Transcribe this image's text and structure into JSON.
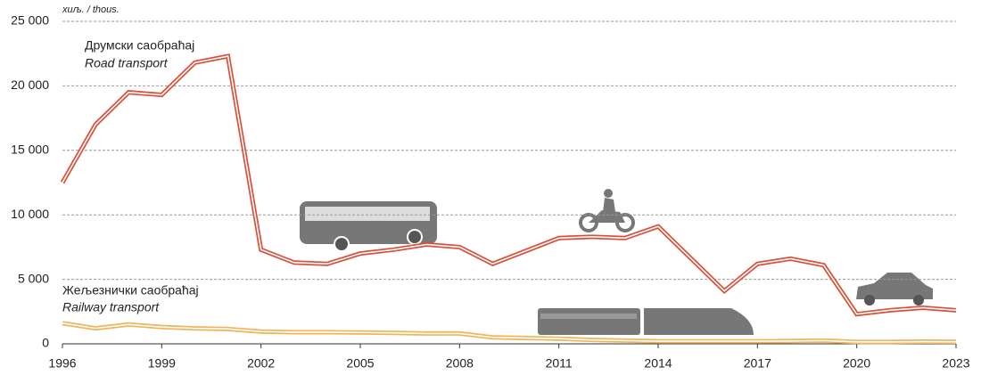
{
  "chart_data": {
    "type": "line",
    "unit_label": "хиљ. / thous.",
    "x": [
      1996,
      1997,
      1998,
      1999,
      2000,
      2001,
      2002,
      2003,
      2004,
      2005,
      2006,
      2007,
      2008,
      2009,
      2010,
      2011,
      2012,
      2013,
      2014,
      2015,
      2016,
      2017,
      2018,
      2019,
      2020,
      2021,
      2022,
      2023
    ],
    "series": [
      {
        "name": "Друмски саобраћај",
        "name_en": "Road transport",
        "color": "#d9503a",
        "values": [
          12500,
          17000,
          19500,
          19300,
          21800,
          22300,
          7300,
          6300,
          6200,
          7000,
          7300,
          7700,
          7500,
          6200,
          7200,
          8200,
          8300,
          8200,
          9100,
          6600,
          4100,
          6200,
          6600,
          6100,
          2300,
          2600,
          2800,
          2600
        ]
      },
      {
        "name": "Жељезнички саобраћај",
        "name_en": "Railway transport",
        "color": "#f0b45a",
        "values": [
          1600,
          1200,
          1500,
          1300,
          1200,
          1150,
          950,
          900,
          900,
          880,
          850,
          800,
          800,
          500,
          450,
          400,
          300,
          250,
          200,
          200,
          200,
          200,
          220,
          250,
          150,
          150,
          170,
          160
        ]
      }
    ],
    "xlim": [
      1996,
      2023
    ],
    "xticks": [
      1996,
      1999,
      2002,
      2005,
      2008,
      2011,
      2014,
      2017,
      2020,
      2023
    ],
    "ylim": [
      0,
      25000
    ],
    "yticks": [
      0,
      {
        "value": 5000,
        "label": "5 000"
      },
      {
        "value": 10000,
        "label": "10 000"
      },
      {
        "value": 15000,
        "label": "15 000"
      },
      {
        "value": 20000,
        "label": "20 000"
      },
      {
        "value": 25000,
        "label": "25 000"
      }
    ],
    "grid": true
  }
}
